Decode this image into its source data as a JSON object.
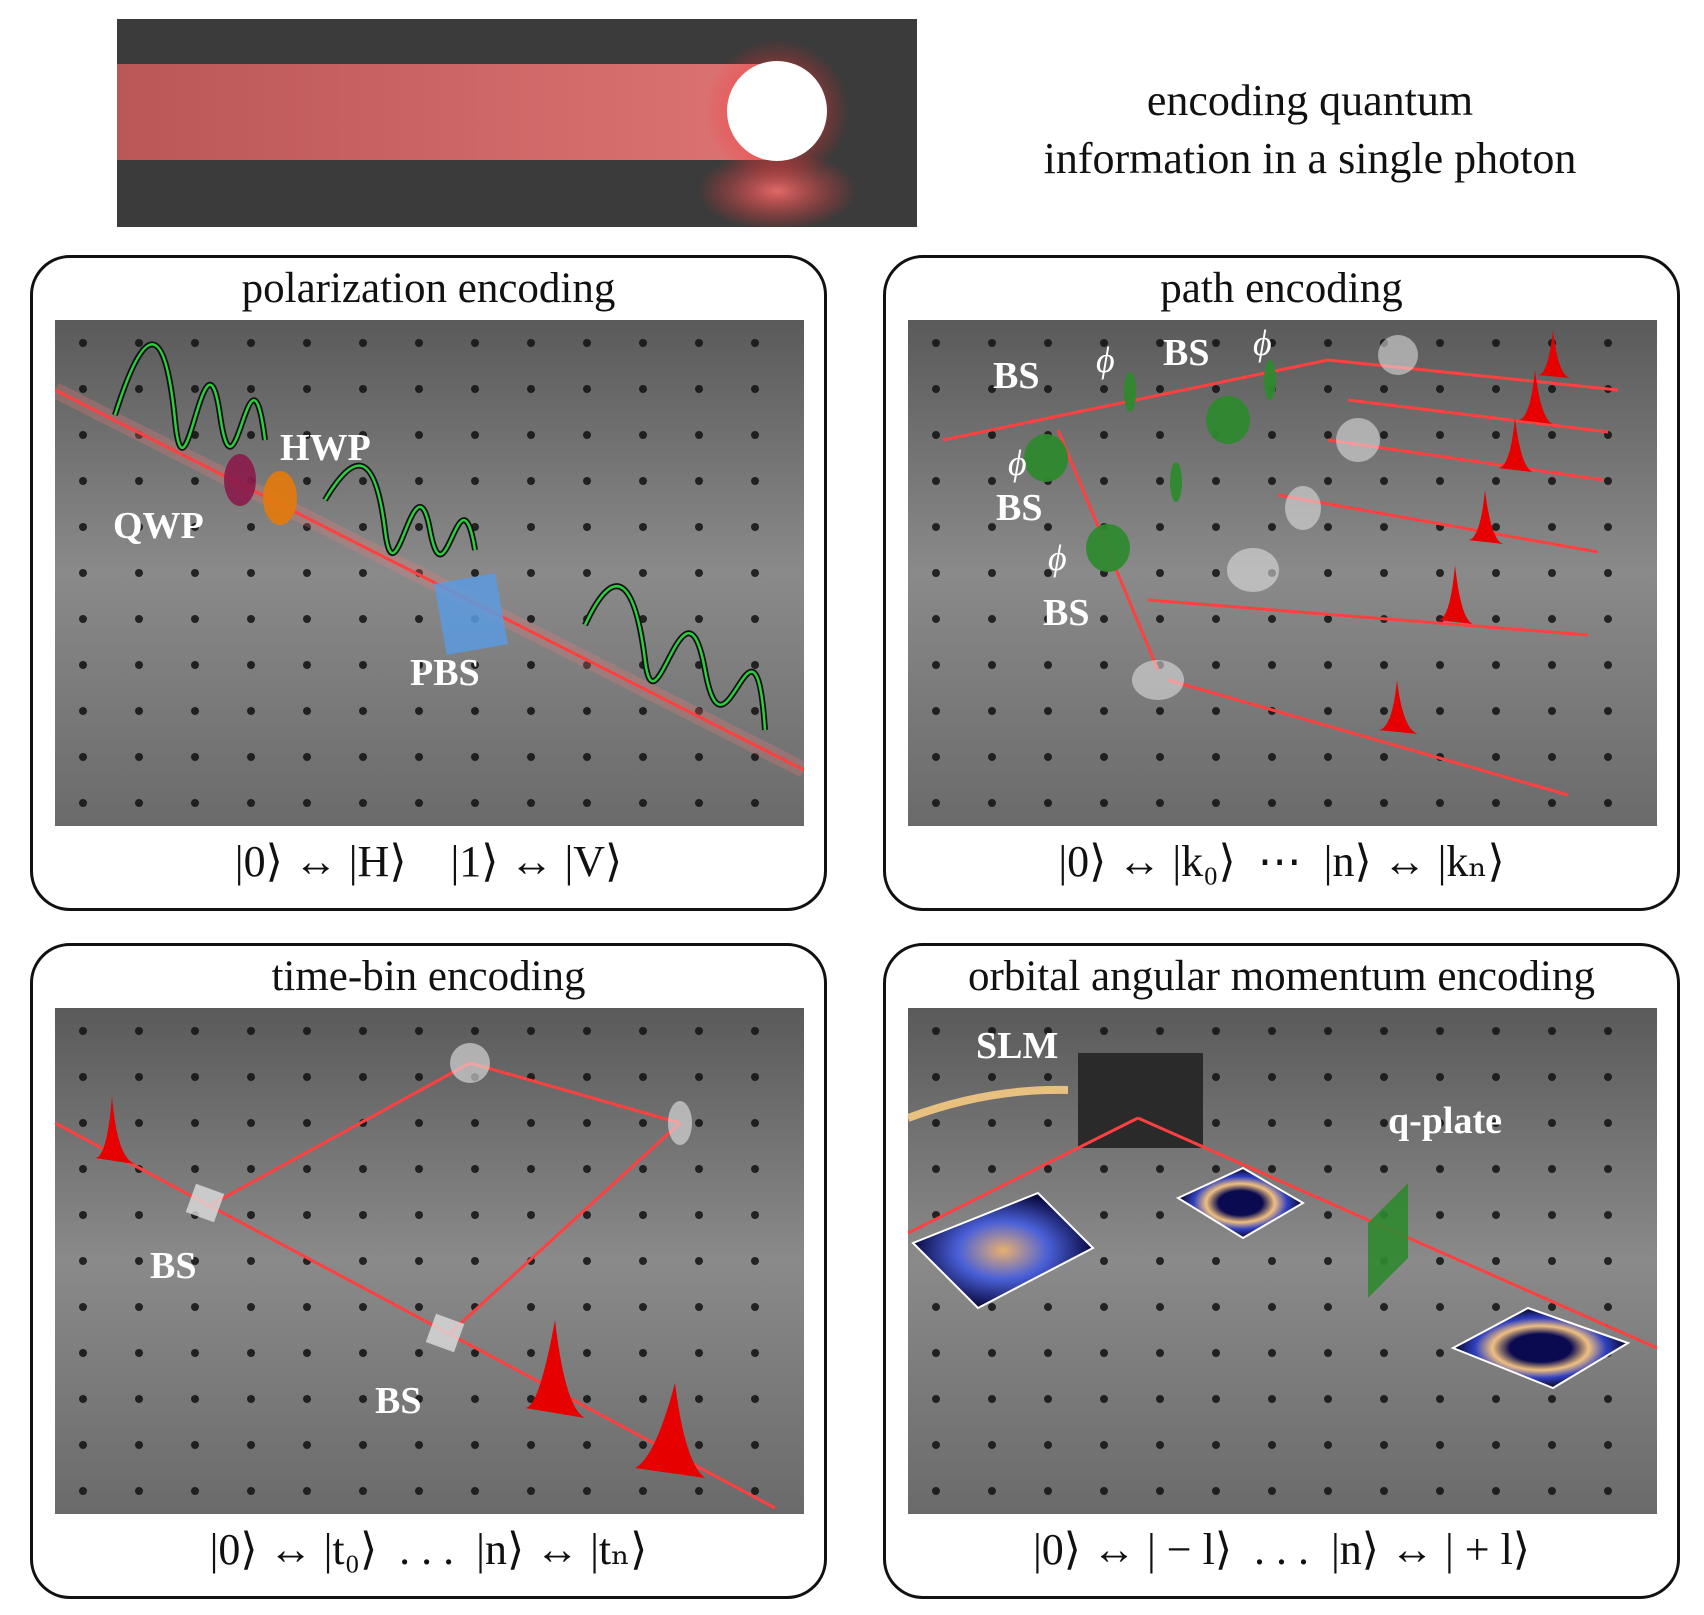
{
  "heading": {
    "line1": "encoding quantum",
    "line2": "information in a single photon"
  },
  "panels": [
    {
      "title": "polarization encoding",
      "formula": "|0⟩ ↔ |H⟩    |1⟩ ↔ |V⟩",
      "labels": [
        "HWP",
        "QWP",
        "PBS"
      ]
    },
    {
      "title": "path encoding",
      "formula": "|0⟩ ↔ |k₀⟩  ⋯  |n⟩ ↔ |kₙ⟩",
      "labels": [
        "BS",
        "BS",
        "BS",
        "BS",
        "ϕ",
        "ϕ",
        "ϕ",
        "ϕ"
      ]
    },
    {
      "title": "time-bin encoding",
      "formula": "|0⟩ ↔ |t₀⟩  . . .  |n⟩ ↔ |tₙ⟩",
      "labels": [
        "BS",
        "BS"
      ]
    },
    {
      "title": "orbital angular momentum encoding",
      "formula": "|0⟩ ↔ | − l⟩  . . .  |n⟩ ↔ | + l⟩",
      "labels": [
        "SLM",
        "q-plate"
      ]
    }
  ],
  "colors": {
    "beam": "#ff4040",
    "pulse": "#e60000",
    "wave": "#2ecc40",
    "table": "#6b6b6b"
  }
}
